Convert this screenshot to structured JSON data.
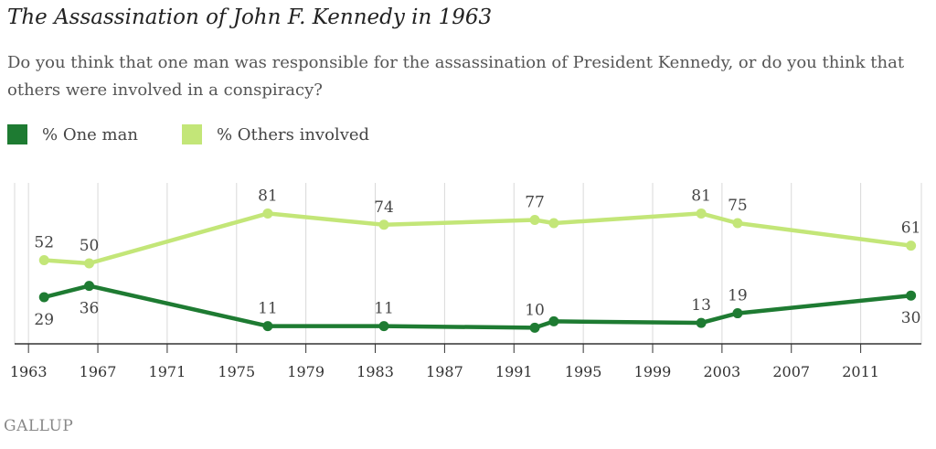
{
  "title": "The Assassination of John F. Kennedy in 1963",
  "subtitle": "Do you think that one man was responsible for the assassination of President Kennedy, or do you think that others were involved in a conspiracy?",
  "brand": "GALLUP",
  "colors": {
    "one_man": "#1e7b32",
    "others": "#c3e678",
    "grid": "#d9d9d9",
    "axis": "#333333"
  },
  "chart_data": {
    "type": "line",
    "xlabel": "",
    "ylabel": "",
    "x_ticks": [
      1963,
      1967,
      1971,
      1975,
      1979,
      1983,
      1987,
      1991,
      1995,
      1999,
      2003,
      2007,
      2011
    ],
    "xlim": [
      1962.2,
      2014.5
    ],
    "ylim": [
      0,
      100
    ],
    "grid": true,
    "legend_position": "top-left",
    "series": [
      {
        "name": "% One man",
        "key": "one_man",
        "x": [
          1963.9,
          1966.5,
          1976.8,
          1983.5,
          1992.2,
          1993.3,
          2001.8,
          2003.9,
          2013.9
        ],
        "values": [
          29,
          36,
          11,
          11,
          10,
          14,
          13,
          19,
          30
        ],
        "labels": [
          "29",
          "36",
          "11",
          "11",
          "10",
          "",
          "13",
          "19",
          "30"
        ]
      },
      {
        "name": "% Others involved",
        "key": "others",
        "x": [
          1963.9,
          1966.5,
          1976.8,
          1983.5,
          1992.2,
          1993.3,
          2001.8,
          2003.9,
          2013.9
        ],
        "values": [
          52,
          50,
          81,
          74,
          77,
          75,
          81,
          75,
          61
        ],
        "labels": [
          "52",
          "50",
          "81",
          "74",
          "77",
          "",
          "81",
          "75",
          "61"
        ]
      }
    ]
  }
}
